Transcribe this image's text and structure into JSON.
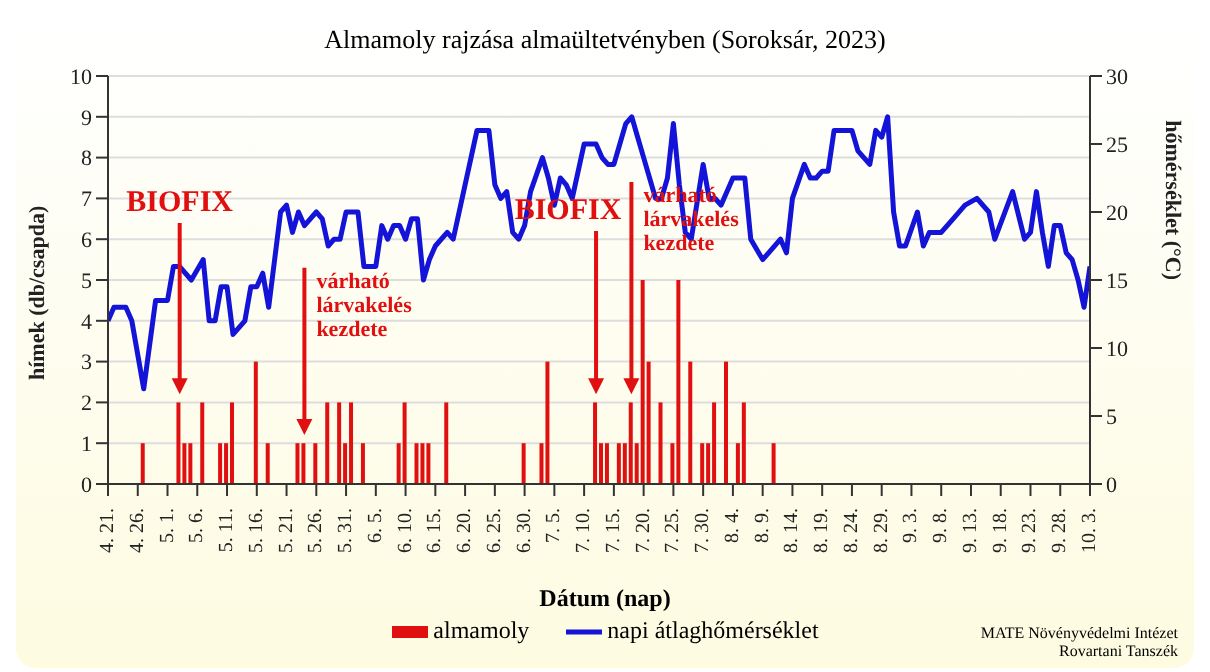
{
  "chart_data": {
    "type": "bar",
    "title": "Almamoly rajzása almaültetvényben (Soroksár, 2023)",
    "xlabel": "Dátum (nap)",
    "ylabel": "hímek (db/csapda)",
    "y2label": "hőmérséklet (°C)",
    "x": [
      "--04-27",
      "--05-03",
      "--05-04",
      "--05-05",
      "--05-07",
      "--05-10",
      "--05-11",
      "--05-12",
      "--05-16",
      "--05-18",
      "--05-23",
      "--05-24",
      "--05-26",
      "--05-28",
      "--05-30",
      "--05-31",
      "--06-01",
      "--06-03",
      "--06-09",
      "--06-10",
      "--06-12",
      "--06-13",
      "--06-14",
      "--06-17",
      "--06-30",
      "--07-03",
      "--07-04",
      "--07-12",
      "--07-13",
      "--07-14",
      "--07-16",
      "--07-17",
      "--07-18",
      "--07-19",
      "--07-20",
      "--07-21",
      "--07-23",
      "--07-25",
      "--07-26",
      "--07-28",
      "--07-30",
      "--07-31",
      "--08-01",
      "--08-03",
      "--08-05",
      "--08-06",
      "--08-11"
    ],
    "series": [
      {
        "name": "almamoly",
        "color": "#e01010",
        "values": [
          1,
          2,
          1,
          1,
          2,
          1,
          1,
          2,
          3,
          1,
          1,
          1,
          1,
          2,
          2,
          1,
          2,
          1,
          1,
          2,
          1,
          1,
          1,
          2,
          1,
          1,
          3,
          2,
          1,
          1,
          1,
          1,
          2,
          1,
          5,
          3,
          2,
          1,
          5,
          3,
          1,
          1,
          2,
          3,
          1,
          2,
          1
        ]
      },
      {
        "name": "napi átlaghőmérséklet",
        "type": "line",
        "axis": "y2",
        "color": "#1414d8",
        "x": [
          "--04-21",
          "--04-22",
          "--04-24",
          "--04-25",
          "--04-27",
          "--04-29",
          "--05-01",
          "--05-02",
          "--05-03",
          "--05-05",
          "--05-07",
          "--05-08",
          "--05-09",
          "--05-10",
          "--05-11",
          "--05-12",
          "--05-14",
          "--05-15",
          "--05-16",
          "--05-17",
          "--05-18",
          "--05-20",
          "--05-21",
          "--05-22",
          "--05-23",
          "--05-24",
          "--05-26",
          "--05-27",
          "--05-28",
          "--05-29",
          "--05-30",
          "--05-31",
          "--06-02",
          "--06-03",
          "--06-05",
          "--06-06",
          "--06-07",
          "--06-08",
          "--06-09",
          "--06-10",
          "--06-11",
          "--06-12",
          "--06-13",
          "--06-14",
          "--06-15",
          "--06-17",
          "--06-18",
          "--06-19",
          "--06-21",
          "--06-22",
          "--06-24",
          "--06-25",
          "--06-26",
          "--06-27",
          "--06-28",
          "--06-29",
          "--06-30",
          "--07-01",
          "--07-03",
          "--07-04",
          "--07-05",
          "--07-06",
          "--07-07",
          "--07-08",
          "--07-10",
          "--07-12",
          "--07-13",
          "--07-14",
          "--07-15",
          "--07-16",
          "--07-17",
          "--07-18",
          "--07-19",
          "--07-20",
          "--07-21",
          "--07-22",
          "--07-23",
          "--07-24",
          "--07-25",
          "--07-26",
          "--07-27",
          "--07-28",
          "--07-30",
          "--07-31",
          "--08-01",
          "--08-02",
          "--08-04",
          "--08-05",
          "--08-06",
          "--08-07",
          "--08-09",
          "--08-10",
          "--08-12",
          "--08-13",
          "--08-14",
          "--08-16",
          "--08-17",
          "--08-18",
          "--08-19",
          "--08-20",
          "--08-21",
          "--08-24",
          "--08-25",
          "--08-26",
          "--08-27",
          "--08-28",
          "--08-29",
          "--08-30",
          "--08-31",
          "--09-01",
          "--09-02",
          "--09-04",
          "--09-05",
          "--09-06",
          "--09-08",
          "--09-10",
          "--09-12",
          "--09-14",
          "--09-16",
          "--09-17",
          "--09-20",
          "--09-22",
          "--09-23",
          "--09-24",
          "--09-25",
          "--09-26",
          "--09-27",
          "--09-28",
          "--09-29",
          "--09-30",
          "--10-01",
          "--10-02",
          "--10-03"
        ],
        "values": [
          12,
          13,
          13,
          12,
          7,
          13.5,
          13.5,
          16,
          16,
          15,
          16.5,
          12,
          12,
          14.5,
          14.5,
          11,
          12,
          14.5,
          14.5,
          15.5,
          13,
          20,
          20.5,
          18.5,
          20,
          19,
          20,
          19.5,
          17.5,
          18,
          18,
          20,
          20,
          16,
          16,
          19,
          18,
          19,
          19,
          18,
          19.5,
          19.5,
          15,
          16.5,
          17.5,
          18.5,
          18,
          20,
          24,
          26,
          26,
          22,
          21,
          21.5,
          18.5,
          18,
          19,
          21.5,
          24,
          22.5,
          20.5,
          22.5,
          22,
          21,
          25,
          25,
          24,
          23.5,
          23.5,
          25,
          26.5,
          27,
          25.5,
          24,
          22.5,
          21,
          21,
          22.5,
          26.5,
          22,
          18.5,
          18,
          23.5,
          21,
          21,
          20.5,
          22.5,
          22.5,
          22.5,
          18,
          16.5,
          17,
          18,
          17,
          21,
          23.5,
          22.5,
          22.5,
          23,
          23,
          26,
          26,
          24.5,
          24,
          23.5,
          26,
          25.5,
          27,
          20,
          17.5,
          17.5,
          20,
          17.5,
          18.5,
          18.5,
          19.5,
          20.5,
          21,
          20,
          18,
          21.5,
          18,
          18.5,
          21.5,
          18.5,
          16,
          19,
          19,
          17,
          16.5,
          15,
          13,
          16
        ]
      }
    ],
    "xlim": [
      "--04-21",
      "--10-03"
    ],
    "xticks": [
      {
        "value": "--04-21",
        "label": "4. 21."
      },
      {
        "value": "--04-26",
        "label": "4. 26."
      },
      {
        "value": "--05-01",
        "label": "5. 1."
      },
      {
        "value": "--05-06",
        "label": "5. 6."
      },
      {
        "value": "--05-11",
        "label": "5. 11."
      },
      {
        "value": "--05-16",
        "label": "5. 16."
      },
      {
        "value": "--05-21",
        "label": "5. 21."
      },
      {
        "value": "--05-26",
        "label": "5. 26."
      },
      {
        "value": "--05-31",
        "label": "5. 31."
      },
      {
        "value": "--06-05",
        "label": "6. 5."
      },
      {
        "value": "--06-10",
        "label": "6. 10."
      },
      {
        "value": "--06-15",
        "label": "6. 15."
      },
      {
        "value": "--06-20",
        "label": "6. 20."
      },
      {
        "value": "--06-25",
        "label": "6. 25."
      },
      {
        "value": "--06-30",
        "label": "6. 30."
      },
      {
        "value": "--07-05",
        "label": "7. 5."
      },
      {
        "value": "--07-10",
        "label": "7. 10."
      },
      {
        "value": "--07-15",
        "label": "7. 15."
      },
      {
        "value": "--07-20",
        "label": "7. 20."
      },
      {
        "value": "--07-25",
        "label": "7. 25."
      },
      {
        "value": "--07-30",
        "label": "7. 30."
      },
      {
        "value": "--08-04",
        "label": "8. 4."
      },
      {
        "value": "--08-09",
        "label": "8. 9."
      },
      {
        "value": "--08-14",
        "label": "8. 14."
      },
      {
        "value": "--08-19",
        "label": "8. 19."
      },
      {
        "value": "--08-24",
        "label": "8. 24."
      },
      {
        "value": "--08-29",
        "label": "8. 29."
      },
      {
        "value": "--09-03",
        "label": "9. 3."
      },
      {
        "value": "--09-08",
        "label": "9. 8."
      },
      {
        "value": "--09-13",
        "label": "9. 13."
      },
      {
        "value": "--09-18",
        "label": "9. 18."
      },
      {
        "value": "--09-23",
        "label": "9. 23."
      },
      {
        "value": "--09-28",
        "label": "9. 28."
      },
      {
        "value": "--10-03",
        "label": "10. 3."
      }
    ],
    "ylim": [
      0,
      10
    ],
    "yticks": [
      0,
      1,
      2,
      3,
      4,
      5,
      6,
      7,
      8,
      9,
      10
    ],
    "y2lim": [
      0,
      30
    ],
    "y2ticks": [
      0,
      5,
      10,
      15,
      20,
      25,
      30
    ],
    "grid": "y",
    "legend": "bottom",
    "annotations": [
      "BIOFIX",
      "várható lárvakelés kezdete",
      "BIOFIX",
      "várható lárvakelés kezdete",
      "MATE Növényvédelmi Intézet",
      "Rovartani Tanszék"
    ]
  }
}
